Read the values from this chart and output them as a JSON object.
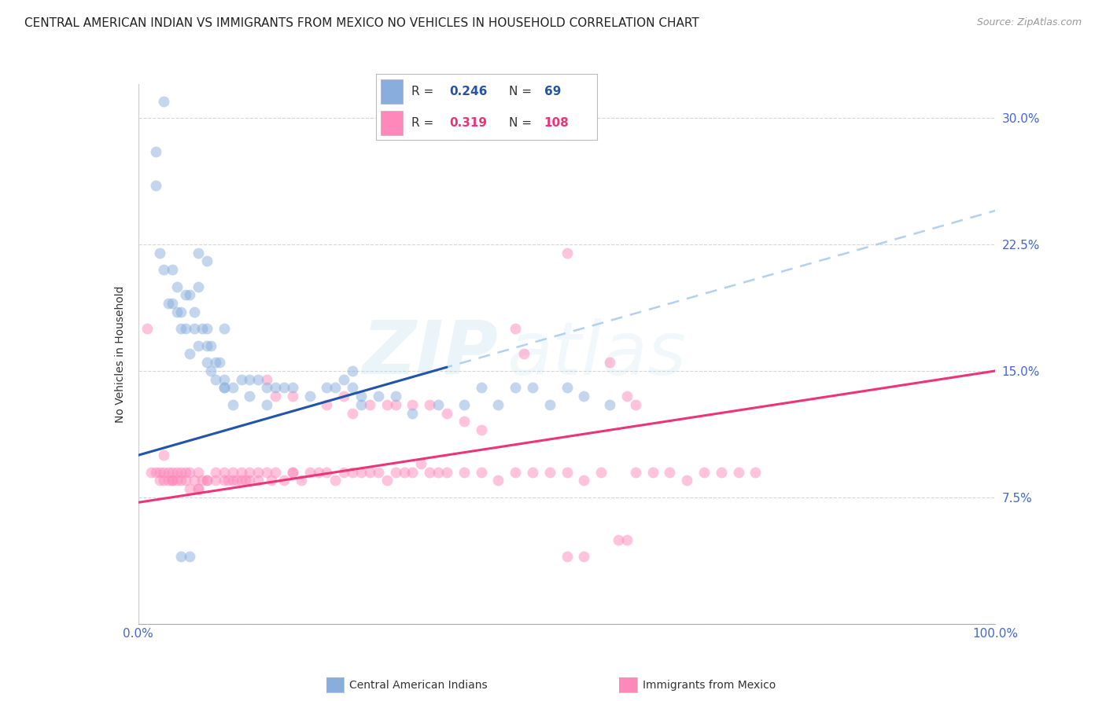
{
  "title": "CENTRAL AMERICAN INDIAN VS IMMIGRANTS FROM MEXICO NO VEHICLES IN HOUSEHOLD CORRELATION CHART",
  "source": "Source: ZipAtlas.com",
  "ylabel": "No Vehicles in Household",
  "xlim": [
    0,
    1.0
  ],
  "ylim": [
    0,
    0.32
  ],
  "ytick_positions": [
    0.0,
    0.075,
    0.15,
    0.225,
    0.3
  ],
  "ytick_labels": [
    "",
    "7.5%",
    "15.0%",
    "22.5%",
    "30.0%"
  ],
  "xtick_positions": [
    0.0,
    0.1,
    0.2,
    0.3,
    0.4,
    0.5,
    0.6,
    0.7,
    0.8,
    0.9,
    1.0
  ],
  "xtick_labels": [
    "0.0%",
    "",
    "",
    "",
    "",
    "",
    "",
    "",
    "",
    "",
    "100.0%"
  ],
  "blue_color": "#88AEDD",
  "pink_color": "#FF88BB",
  "blue_line_color": "#2255AA",
  "pink_line_color": "#EE3377",
  "blue_dashed_color": "#AACCEE",
  "axis_color": "#4466CC",
  "grid_color": "#CCCCCC",
  "watermark_zip": "ZIP",
  "watermark_atlas": "atlas",
  "background_color": "#FFFFFF",
  "title_fontsize": 11,
  "source_fontsize": 9,
  "label_fontsize": 10,
  "tick_fontsize": 11,
  "marker_size": 100,
  "marker_alpha": 0.5,
  "blue_line_start_x": 0.0,
  "blue_line_end_solid_x": 0.36,
  "blue_line_start_y": 0.1,
  "blue_line_slope": 0.145,
  "pink_line_start_y": 0.072,
  "pink_line_slope": 0.078,
  "blue_scatter_x": [
    0.02,
    0.02,
    0.025,
    0.03,
    0.03,
    0.035,
    0.04,
    0.04,
    0.045,
    0.045,
    0.05,
    0.05,
    0.055,
    0.055,
    0.06,
    0.065,
    0.065,
    0.07,
    0.07,
    0.075,
    0.08,
    0.08,
    0.085,
    0.085,
    0.09,
    0.09,
    0.095,
    0.1,
    0.1,
    0.1,
    0.1,
    0.11,
    0.11,
    0.12,
    0.13,
    0.13,
    0.14,
    0.15,
    0.15,
    0.16,
    0.17,
    0.18,
    0.2,
    0.22,
    0.23,
    0.24,
    0.25,
    0.25,
    0.26,
    0.26,
    0.28,
    0.3,
    0.32,
    0.35,
    0.38,
    0.4,
    0.42,
    0.44,
    0.46,
    0.48,
    0.5,
    0.52,
    0.55,
    0.07,
    0.08,
    0.08,
    0.06,
    0.05,
    0.06
  ],
  "blue_scatter_y": [
    0.26,
    0.28,
    0.22,
    0.31,
    0.21,
    0.19,
    0.19,
    0.21,
    0.185,
    0.2,
    0.185,
    0.175,
    0.195,
    0.175,
    0.195,
    0.175,
    0.185,
    0.2,
    0.165,
    0.175,
    0.175,
    0.155,
    0.165,
    0.15,
    0.155,
    0.145,
    0.155,
    0.145,
    0.14,
    0.14,
    0.175,
    0.14,
    0.13,
    0.145,
    0.135,
    0.145,
    0.145,
    0.13,
    0.14,
    0.14,
    0.14,
    0.14,
    0.135,
    0.14,
    0.14,
    0.145,
    0.14,
    0.15,
    0.135,
    0.13,
    0.135,
    0.135,
    0.125,
    0.13,
    0.13,
    0.14,
    0.13,
    0.14,
    0.14,
    0.13,
    0.14,
    0.135,
    0.13,
    0.22,
    0.215,
    0.165,
    0.16,
    0.04,
    0.04
  ],
  "pink_scatter_x": [
    0.01,
    0.015,
    0.02,
    0.025,
    0.025,
    0.03,
    0.03,
    0.03,
    0.035,
    0.035,
    0.04,
    0.04,
    0.04,
    0.045,
    0.045,
    0.05,
    0.05,
    0.055,
    0.055,
    0.06,
    0.06,
    0.065,
    0.07,
    0.07,
    0.07,
    0.075,
    0.08,
    0.08,
    0.09,
    0.09,
    0.1,
    0.1,
    0.105,
    0.11,
    0.11,
    0.115,
    0.12,
    0.12,
    0.125,
    0.13,
    0.13,
    0.14,
    0.14,
    0.15,
    0.155,
    0.16,
    0.17,
    0.18,
    0.18,
    0.19,
    0.2,
    0.21,
    0.22,
    0.23,
    0.24,
    0.25,
    0.26,
    0.27,
    0.28,
    0.29,
    0.3,
    0.31,
    0.32,
    0.33,
    0.34,
    0.35,
    0.36,
    0.38,
    0.4,
    0.42,
    0.44,
    0.46,
    0.48,
    0.5,
    0.52,
    0.54,
    0.56,
    0.57,
    0.58,
    0.6,
    0.62,
    0.64,
    0.66,
    0.68,
    0.7,
    0.72,
    0.44,
    0.5,
    0.52,
    0.55,
    0.57,
    0.58,
    0.15,
    0.16,
    0.18,
    0.22,
    0.24,
    0.25,
    0.27,
    0.29,
    0.3,
    0.32,
    0.34,
    0.36,
    0.38,
    0.4,
    0.45,
    0.5
  ],
  "pink_scatter_y": [
    0.175,
    0.09,
    0.09,
    0.09,
    0.085,
    0.085,
    0.09,
    0.1,
    0.085,
    0.09,
    0.085,
    0.09,
    0.085,
    0.085,
    0.09,
    0.085,
    0.09,
    0.085,
    0.09,
    0.08,
    0.09,
    0.085,
    0.08,
    0.09,
    0.08,
    0.085,
    0.085,
    0.085,
    0.085,
    0.09,
    0.085,
    0.09,
    0.085,
    0.085,
    0.09,
    0.085,
    0.085,
    0.09,
    0.085,
    0.085,
    0.09,
    0.085,
    0.09,
    0.09,
    0.085,
    0.09,
    0.085,
    0.09,
    0.09,
    0.085,
    0.09,
    0.09,
    0.09,
    0.085,
    0.09,
    0.09,
    0.09,
    0.09,
    0.09,
    0.085,
    0.09,
    0.09,
    0.09,
    0.095,
    0.09,
    0.09,
    0.09,
    0.09,
    0.09,
    0.085,
    0.09,
    0.09,
    0.09,
    0.09,
    0.085,
    0.09,
    0.05,
    0.05,
    0.09,
    0.09,
    0.09,
    0.085,
    0.09,
    0.09,
    0.09,
    0.09,
    0.175,
    0.04,
    0.04,
    0.155,
    0.135,
    0.13,
    0.145,
    0.135,
    0.135,
    0.13,
    0.135,
    0.125,
    0.13,
    0.13,
    0.13,
    0.13,
    0.13,
    0.125,
    0.12,
    0.115,
    0.16,
    0.22
  ]
}
